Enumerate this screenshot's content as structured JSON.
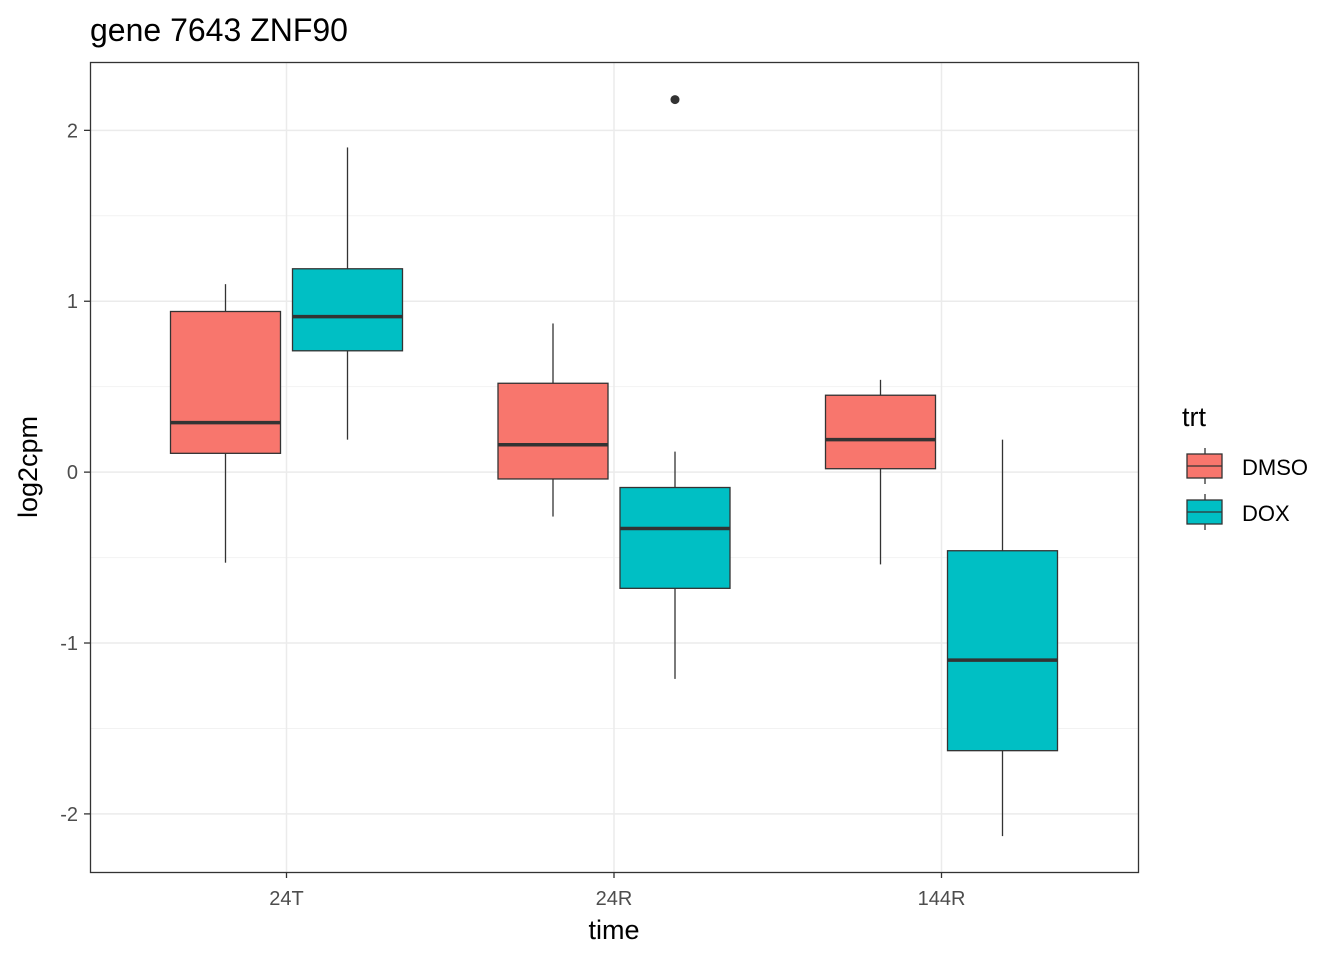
{
  "chart_data": {
    "type": "boxplot",
    "title": "gene 7643 ZNF90",
    "xlabel": "time",
    "ylabel": "log2cpm",
    "categories": [
      "24T",
      "24R",
      "144R"
    ],
    "ylim": [
      -2.34,
      2.4
    ],
    "yticks": [
      -2,
      -1,
      0,
      1,
      2
    ],
    "ytick_labels": [
      "-2",
      "-1",
      "0",
      "1",
      "2"
    ],
    "grid": true,
    "legend": {
      "title": "trt",
      "position": "right"
    },
    "series": [
      {
        "name": "DMSO",
        "color": "#F8766D",
        "boxes": [
          {
            "whisker_low": -0.53,
            "q1": 0.11,
            "median": 0.29,
            "q3": 0.94,
            "whisker_high": 1.1,
            "outliers": []
          },
          {
            "whisker_low": -0.26,
            "q1": -0.04,
            "median": 0.16,
            "q3": 0.52,
            "whisker_high": 0.87,
            "outliers": []
          },
          {
            "whisker_low": -0.54,
            "q1": 0.02,
            "median": 0.19,
            "q3": 0.45,
            "whisker_high": 0.54,
            "outliers": []
          }
        ]
      },
      {
        "name": "DOX",
        "color": "#00BFC4",
        "boxes": [
          {
            "whisker_low": 0.19,
            "q1": 0.71,
            "median": 0.91,
            "q3": 1.19,
            "whisker_high": 1.9,
            "outliers": []
          },
          {
            "whisker_low": -1.21,
            "q1": -0.68,
            "median": -0.33,
            "q3": -0.09,
            "whisker_high": 0.12,
            "outliers": [
              2.18
            ]
          },
          {
            "whisker_low": -2.13,
            "q1": -1.63,
            "median": -1.1,
            "q3": -0.46,
            "whisker_high": 0.19,
            "outliers": []
          }
        ]
      }
    ]
  }
}
